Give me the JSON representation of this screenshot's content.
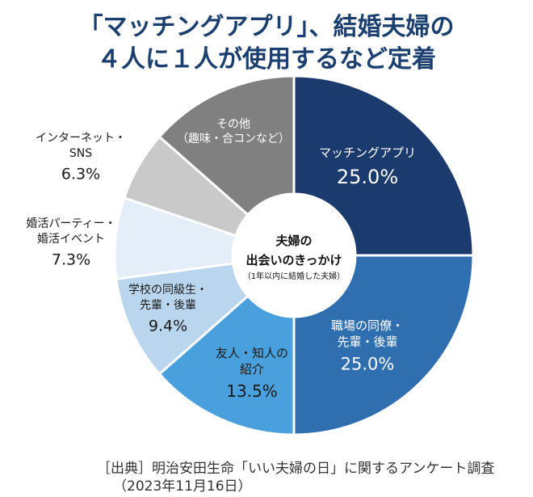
{
  "title": {
    "line1": "「マッチングアプリ」、結婚夫婦の",
    "line2": "４人に１人が使用するなど定着"
  },
  "chart_data": {
    "type": "donut",
    "unit": "%",
    "center_label": {
      "line1": "夫婦の",
      "line2": "出会いのきっかけ",
      "line3": "（1年以内に結婚した夫婦）"
    },
    "slices": [
      {
        "name_lines": [
          "マッチングアプリ"
        ],
        "value": 25.0,
        "value_label": "25.0%",
        "color": "#1b3b6f"
      },
      {
        "name_lines": [
          "職場の同僚・",
          "先輩・後輩"
        ],
        "value": 25.0,
        "value_label": "25.0%",
        "color": "#2f6fb0"
      },
      {
        "name_lines": [
          "友人・知人の",
          "紹介"
        ],
        "value": 13.5,
        "value_label": "13.5%",
        "color": "#4aa0dc"
      },
      {
        "name_lines": [
          "学校の同級生・",
          "先輩・後輩"
        ],
        "value": 9.4,
        "value_label": "9.4%",
        "color": "#b9d6ee"
      },
      {
        "name_lines": [
          "婚活パーティー・",
          "婚活イベント"
        ],
        "value": 7.3,
        "value_label": "7.3%",
        "color": "#e3eef8"
      },
      {
        "name_lines": [
          "インターネット・",
          "SNS"
        ],
        "value": 6.3,
        "value_label": "6.3%",
        "color": "#c9c9c9"
      },
      {
        "name_lines": [
          "その他",
          "（趣味・合コンなど）"
        ],
        "value": 13.5,
        "value_label": "",
        "color": "#808080"
      }
    ]
  },
  "source": {
    "line1": "［出典］明治安田生命「いい夫婦の日」に関するアンケート調査",
    "line2": "（2023年11月16日）"
  }
}
